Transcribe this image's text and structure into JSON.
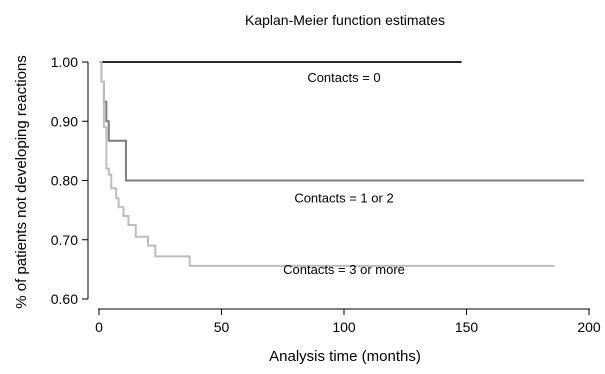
{
  "chart_data": {
    "type": "line",
    "title": "Kaplan-Meier function estimates",
    "xlabel": "Analysis time (months)",
    "ylabel": "% of patients not developing reactions",
    "xlim": [
      0,
      200
    ],
    "ylim": [
      0.6,
      1.0
    ],
    "xticks": [
      0,
      50,
      100,
      150,
      200
    ],
    "xtick_labels": [
      "0",
      "50",
      "100",
      "150",
      "200"
    ],
    "yticks": [
      0.6,
      0.7,
      0.8,
      0.9,
      1.0
    ],
    "ytick_labels": [
      "0.60",
      "0.70",
      "0.80",
      "0.90",
      "1.00"
    ],
    "grid": false,
    "step": "post",
    "series": [
      {
        "label": "Contacts = 0",
        "color": "#2a2a2a",
        "x": [
          0,
          148
        ],
        "y": [
          1.0,
          1.0
        ],
        "label_at": [
          100,
          0.975
        ]
      },
      {
        "label": "Contacts = 1 or 2",
        "color": "#7d7d7d",
        "x": [
          0,
          1,
          2,
          3,
          4,
          5,
          11,
          198
        ],
        "y": [
          1.0,
          0.967,
          0.933,
          0.9,
          0.867,
          0.867,
          0.8,
          0.8
        ],
        "label_at": [
          100,
          0.771
        ]
      },
      {
        "label": "Contacts = 3 or more",
        "color": "#bdbdbd",
        "x": [
          0,
          1,
          2,
          3,
          4,
          5,
          7,
          8,
          10,
          12,
          15,
          20,
          23,
          28,
          37,
          186
        ],
        "y": [
          1.0,
          0.967,
          0.89,
          0.82,
          0.81,
          0.787,
          0.77,
          0.755,
          0.74,
          0.725,
          0.705,
          0.69,
          0.672,
          0.672,
          0.656,
          0.656
        ],
        "label_at": [
          100,
          0.651
        ]
      }
    ]
  }
}
